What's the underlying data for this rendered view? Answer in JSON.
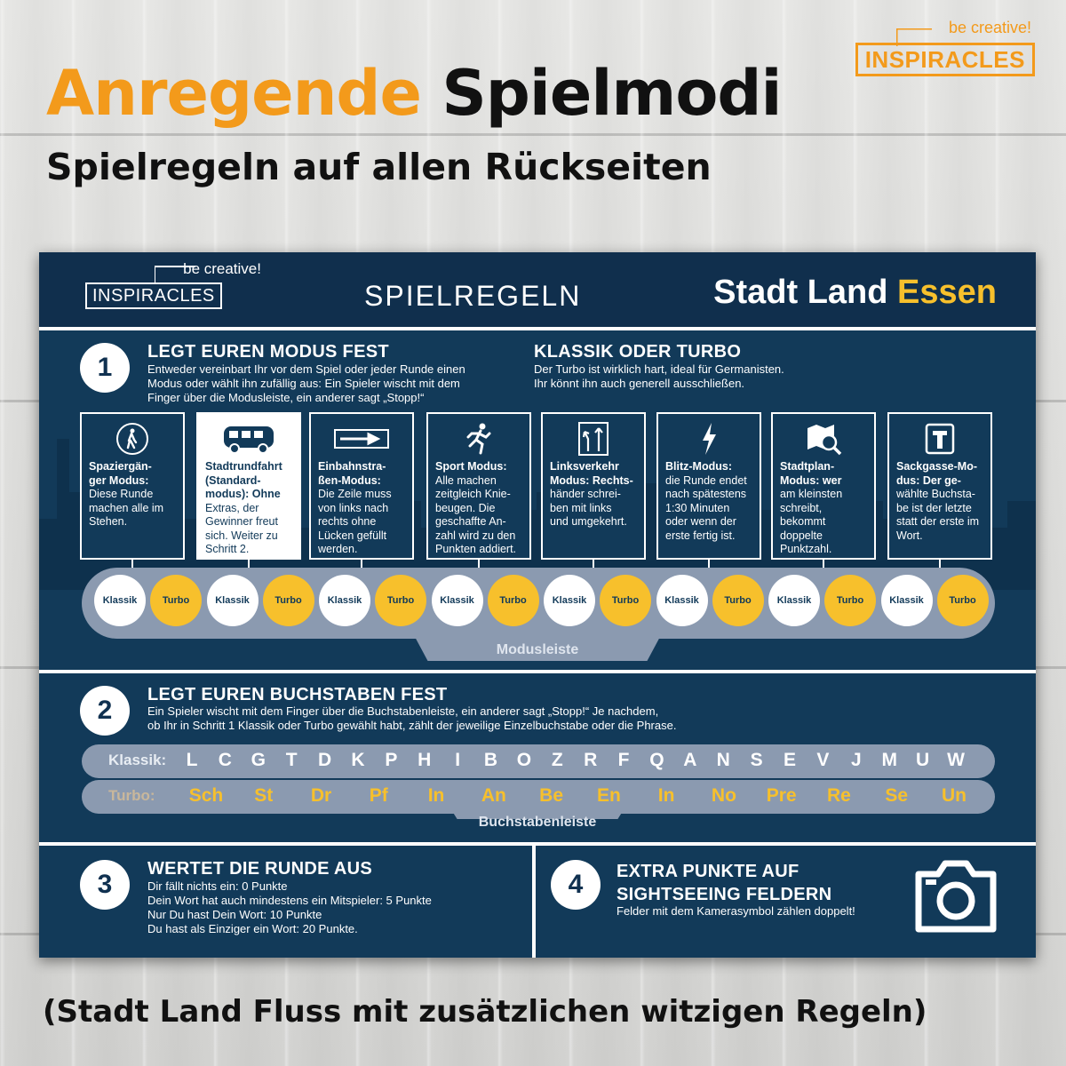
{
  "header": {
    "title_accent": "Anregende",
    "title_rest": "Spielmodi",
    "subtitle": "Spielregeln auf allen Rückseiten"
  },
  "brand": {
    "tagline": "be creative!",
    "name": "INSPIRACLES",
    "color": "#f39a1b"
  },
  "card": {
    "logo_tagline": "be creative!",
    "logo_name": "INSPIRACLES",
    "heading": "SPIELREGELN",
    "game_title_white": "Stadt Land",
    "game_title_yellow": "Essen",
    "step1": {
      "number": "1",
      "title": "LEGT EUREN MODUS FEST",
      "text_lines": [
        "Entweder vereinbart Ihr vor dem Spiel oder jeder Runde einen",
        "Modus oder wählt ihn zufällig aus: Ein Spieler wischt mit dem",
        "Finger über die Modusleiste, ein anderer sagt „Stopp!“"
      ]
    },
    "classic_turbo": {
      "title": "KLASSIK ODER TURBO",
      "text_lines": [
        "Der Turbo ist wirklich hart, ideal für Germanisten.",
        "Ihr könnt ihn auch generell ausschließen."
      ]
    },
    "modes": [
      {
        "icon": "pedestrian-icon",
        "name": "Spaziergän-ger Modus:",
        "lines": [
          "Spaziergän-",
          "ger Modus:",
          "Diese Runde",
          "machen alle im",
          "Stehen."
        ],
        "bold": 2
      },
      {
        "icon": "bus-icon",
        "lines": [
          "Stadtrundfahrt",
          "(Standard-",
          "modus): Ohne",
          "Extras, der",
          "Gewinner freut",
          "sich. Weiter zu",
          "Schritt 2."
        ],
        "bold": 3
      },
      {
        "icon": "one-way-arrow-icon",
        "lines": [
          "Einbahnstra-",
          "ßen-Modus:",
          "Die Zeile muss",
          "von links nach",
          "rechts ohne",
          "Lücken gefüllt",
          "werden."
        ],
        "bold": 2
      },
      {
        "icon": "runner-icon",
        "lines": [
          "Sport Modus:",
          "Alle machen",
          "zeitgleich Knie-",
          "beugen. Die",
          "geschaffte An-",
          "zahl wird zu den",
          "Punkten addiert."
        ],
        "bold": 1
      },
      {
        "icon": "left-traffic-sign-icon",
        "lines": [
          "Linksverkehr",
          "Modus: Rechts-",
          "händer schrei-",
          "ben mit links",
          "und umgekehrt."
        ],
        "bold": 2
      },
      {
        "icon": "lightning-icon",
        "lines": [
          "Blitz-Modus:",
          "die Runde endet",
          "nach spätestens",
          "1:30 Minuten",
          "oder wenn der",
          "erste fertig ist."
        ],
        "bold": 1
      },
      {
        "icon": "map-magnifier-icon",
        "lines": [
          "Stadtplan-",
          "Modus: wer",
          "am kleinsten",
          "schreibt,",
          "bekommt",
          "doppelte",
          "Punktzahl."
        ],
        "bold": 2
      },
      {
        "icon": "dead-end-sign-icon",
        "lines": [
          "Sackgasse-Mo-",
          "dus: Der ge-",
          "wählte Buchsta-",
          "be ist der letzte",
          "statt der erste im",
          "Wort."
        ],
        "bold": 2
      }
    ],
    "mode_bar": {
      "label": "Modusleiste",
      "classic": "Klassik",
      "turbo": "Turbo"
    },
    "step2": {
      "number": "2",
      "title": "LEGT EUREN BUCHSTABEN FEST",
      "text_lines": [
        "Ein Spieler wischt mit dem Finger über die Buchstabenleiste, ein anderer sagt „Stopp!“ Je nachdem,",
        "ob Ihr in Schritt 1 Klassik oder Turbo gewählt habt, zählt der jeweilige Einzelbuchstabe oder die Phrase."
      ]
    },
    "letter_bar": {
      "label": "Buchstabenleiste",
      "classic_label": "Klassik:",
      "classic": [
        "L",
        "C",
        "G",
        "T",
        "D",
        "K",
        "P",
        "H",
        "I",
        "B",
        "O",
        "Z",
        "R",
        "F",
        "Q",
        "A",
        "N",
        "S",
        "E",
        "V",
        "J",
        "M",
        "U",
        "W"
      ],
      "turbo_label": "Turbo:",
      "turbo": [
        "Sch",
        "St",
        "Dr",
        "Pf",
        "In",
        "An",
        "Be",
        "En",
        "In",
        "No",
        "Pre",
        "Re",
        "Se",
        "Un"
      ]
    },
    "step3": {
      "number": "3",
      "title": "WERTET DIE RUNDE AUS",
      "text_lines": [
        "Dir fällt nichts ein: 0 Punkte",
        "Dein Wort hat auch mindestens ein Mitspieler: 5 Punkte",
        "Nur Du hast Dein Wort: 10 Punkte",
        "Du hast als Einziger ein Wort: 20 Punkte."
      ]
    },
    "step4": {
      "number": "4",
      "title_lines": [
        "EXTRA PUNKTE AUF",
        "SIGHTSEEING FELDERN"
      ],
      "text": "Felder mit dem Kamerasymbol zählen doppelt!",
      "icon": "camera-icon"
    },
    "colors": {
      "navy": "#123a59",
      "yellow": "#f7c02c",
      "bar": "#8b9ab0"
    }
  },
  "footer": {
    "text": "(Stadt Land Fluss mit zusätzlichen witzigen Regeln)"
  }
}
